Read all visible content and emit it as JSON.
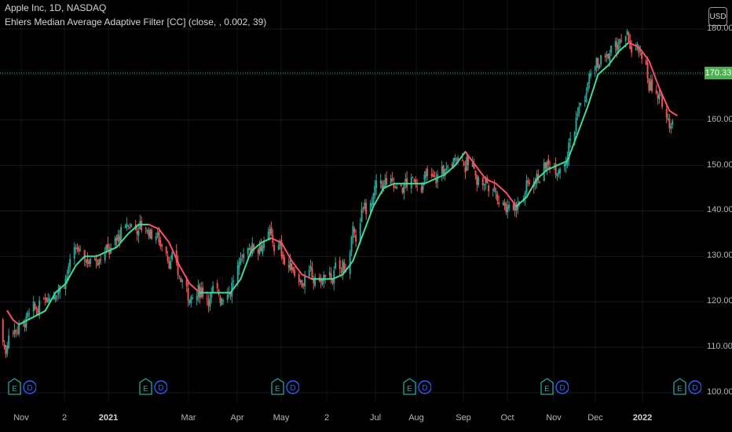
{
  "header": {
    "title": "Apple Inc, 1D, NASDAQ",
    "indicator": "Ehlers Median Average Adaptive Filter [CC] (close, , 0.002, 39)"
  },
  "price_scale": {
    "currency": "USD",
    "last_price": "170.33",
    "ticks": [
      "180.00",
      "170.00",
      "160.00",
      "150.00",
      "140.00",
      "130.00",
      "120.00",
      "110.00",
      "100.00"
    ]
  },
  "time_scale": {
    "ticks": [
      "Nov",
      "2",
      "2021",
      "Mar",
      "Apr",
      "May",
      "2",
      "Jul",
      "Aug",
      "Sep",
      "Oct",
      "Nov",
      "Dec",
      "2022"
    ]
  },
  "events": [
    {
      "earnings": "E",
      "dividend": "D"
    },
    {
      "earnings": "E",
      "dividend": "D"
    },
    {
      "earnings": "E",
      "dividend": "D"
    },
    {
      "earnings": "E",
      "dividend": "D"
    },
    {
      "earnings": "E",
      "dividend": "D"
    },
    {
      "earnings": "E",
      "dividend": "D"
    }
  ],
  "colors": {
    "up": "#26a69a",
    "down": "#ef5350",
    "filter_up": "#3ddc97",
    "filter_down": "#ff4d6a",
    "price_line": "#4caf50",
    "event_earnings": "#26a69a",
    "event_dividend": "#2962ff"
  },
  "chart_data": {
    "type": "line",
    "title": "Apple Inc, 1D, NASDAQ",
    "y_axis": {
      "ylim": [
        100,
        185
      ]
    },
    "series": [
      {
        "name": "Ehlers Median Average Adaptive Filter [CC]",
        "points": [
          [
            "2020-10-29",
            118
          ],
          [
            "2020-11-02",
            116
          ],
          [
            "2020-11-06",
            115
          ],
          [
            "2020-11-12",
            116
          ],
          [
            "2020-11-18",
            117
          ],
          [
            "2020-11-24",
            118
          ],
          [
            "2020-12-01",
            122
          ],
          [
            "2020-12-08",
            124
          ],
          [
            "2020-12-15",
            128
          ],
          [
            "2020-12-21",
            130
          ],
          [
            "2020-12-29",
            130
          ],
          [
            "2021-01-05",
            131
          ],
          [
            "2021-01-12",
            132
          ],
          [
            "2021-01-20",
            135
          ],
          [
            "2021-01-27",
            137
          ],
          [
            "2021-02-03",
            137
          ],
          [
            "2021-02-10",
            136
          ],
          [
            "2021-02-17",
            133
          ],
          [
            "2021-02-24",
            128
          ],
          [
            "2021-03-03",
            124
          ],
          [
            "2021-03-10",
            122
          ],
          [
            "2021-03-17",
            122
          ],
          [
            "2021-03-24",
            122
          ],
          [
            "2021-03-31",
            122
          ],
          [
            "2021-04-07",
            125
          ],
          [
            "2021-04-14",
            131
          ],
          [
            "2021-04-21",
            133
          ],
          [
            "2021-04-28",
            134
          ],
          [
            "2021-05-05",
            133
          ],
          [
            "2021-05-12",
            129
          ],
          [
            "2021-05-19",
            126
          ],
          [
            "2021-05-26",
            125
          ],
          [
            "2021-06-02",
            125
          ],
          [
            "2021-06-09",
            125
          ],
          [
            "2021-06-16",
            126
          ],
          [
            "2021-06-23",
            129
          ],
          [
            "2021-06-30",
            135
          ],
          [
            "2021-07-07",
            141
          ],
          [
            "2021-07-14",
            145
          ],
          [
            "2021-07-21",
            146
          ],
          [
            "2021-07-28",
            146
          ],
          [
            "2021-08-04",
            146
          ],
          [
            "2021-08-11",
            146
          ],
          [
            "2021-08-18",
            147
          ],
          [
            "2021-08-25",
            148
          ],
          [
            "2021-09-01",
            150
          ],
          [
            "2021-09-08",
            153
          ],
          [
            "2021-09-15",
            150
          ],
          [
            "2021-09-22",
            147
          ],
          [
            "2021-09-29",
            146
          ],
          [
            "2021-10-06",
            144
          ],
          [
            "2021-10-13",
            141
          ],
          [
            "2021-10-20",
            143
          ],
          [
            "2021-10-27",
            147
          ],
          [
            "2021-11-03",
            149
          ],
          [
            "2021-11-10",
            150
          ],
          [
            "2021-11-17",
            151
          ],
          [
            "2021-11-24",
            157
          ],
          [
            "2021-12-01",
            163
          ],
          [
            "2021-12-08",
            170
          ],
          [
            "2021-12-15",
            172
          ],
          [
            "2021-12-22",
            175
          ],
          [
            "2021-12-29",
            177
          ],
          [
            "2022-01-05",
            176
          ],
          [
            "2022-01-12",
            173
          ],
          [
            "2022-01-19",
            167
          ],
          [
            "2022-01-26",
            162
          ],
          [
            "2022-01-31",
            161
          ]
        ]
      }
    ],
    "last_close": 170.33
  }
}
